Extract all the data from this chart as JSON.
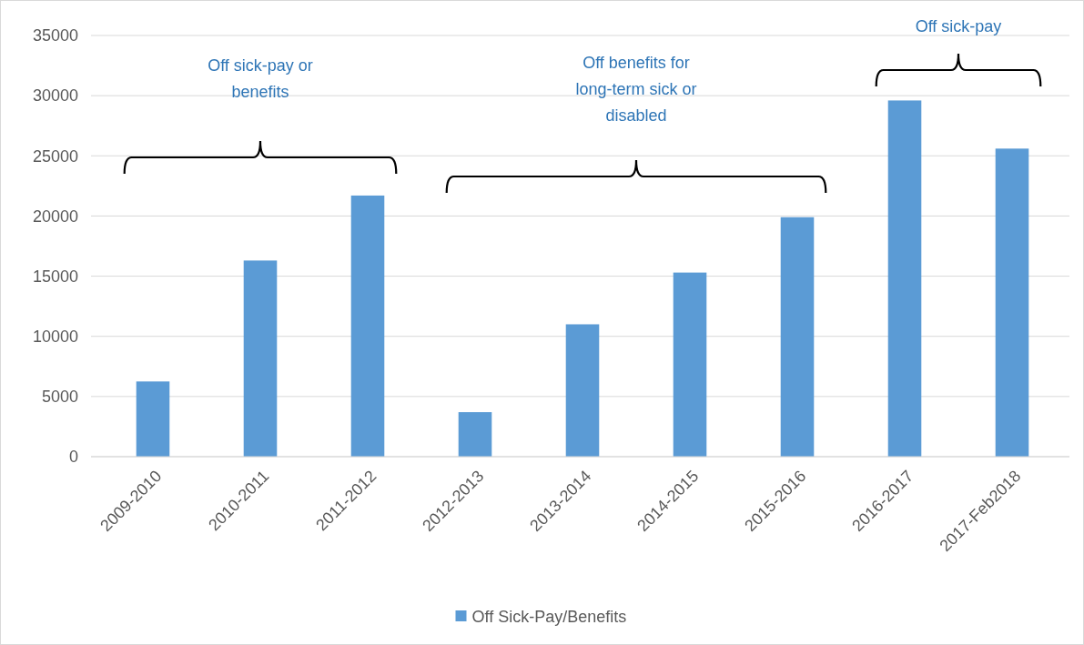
{
  "chart_data": {
    "type": "bar",
    "categories": [
      "2009-2010",
      "2010-2011",
      "2011-2012",
      "2012-2013",
      "2013-2014",
      "2014-2015",
      "2015-2016",
      "2016-2017",
      "2017-Feb2018"
    ],
    "series": [
      {
        "name": "Off Sick-Pay/Benefits",
        "color": "#5b9bd5",
        "values": [
          6250,
          16300,
          21700,
          3700,
          11000,
          15300,
          19900,
          29600,
          25600
        ]
      }
    ],
    "ylim": [
      0,
      35000
    ],
    "yticks": [
      0,
      5000,
      10000,
      15000,
      20000,
      25000,
      30000,
      35000
    ],
    "grid": "y",
    "legend": "bottom",
    "annotations": [
      "Off sick-pay or benefits",
      "Off benefits for long-term sick or disabled",
      "Off sick-pay"
    ]
  }
}
